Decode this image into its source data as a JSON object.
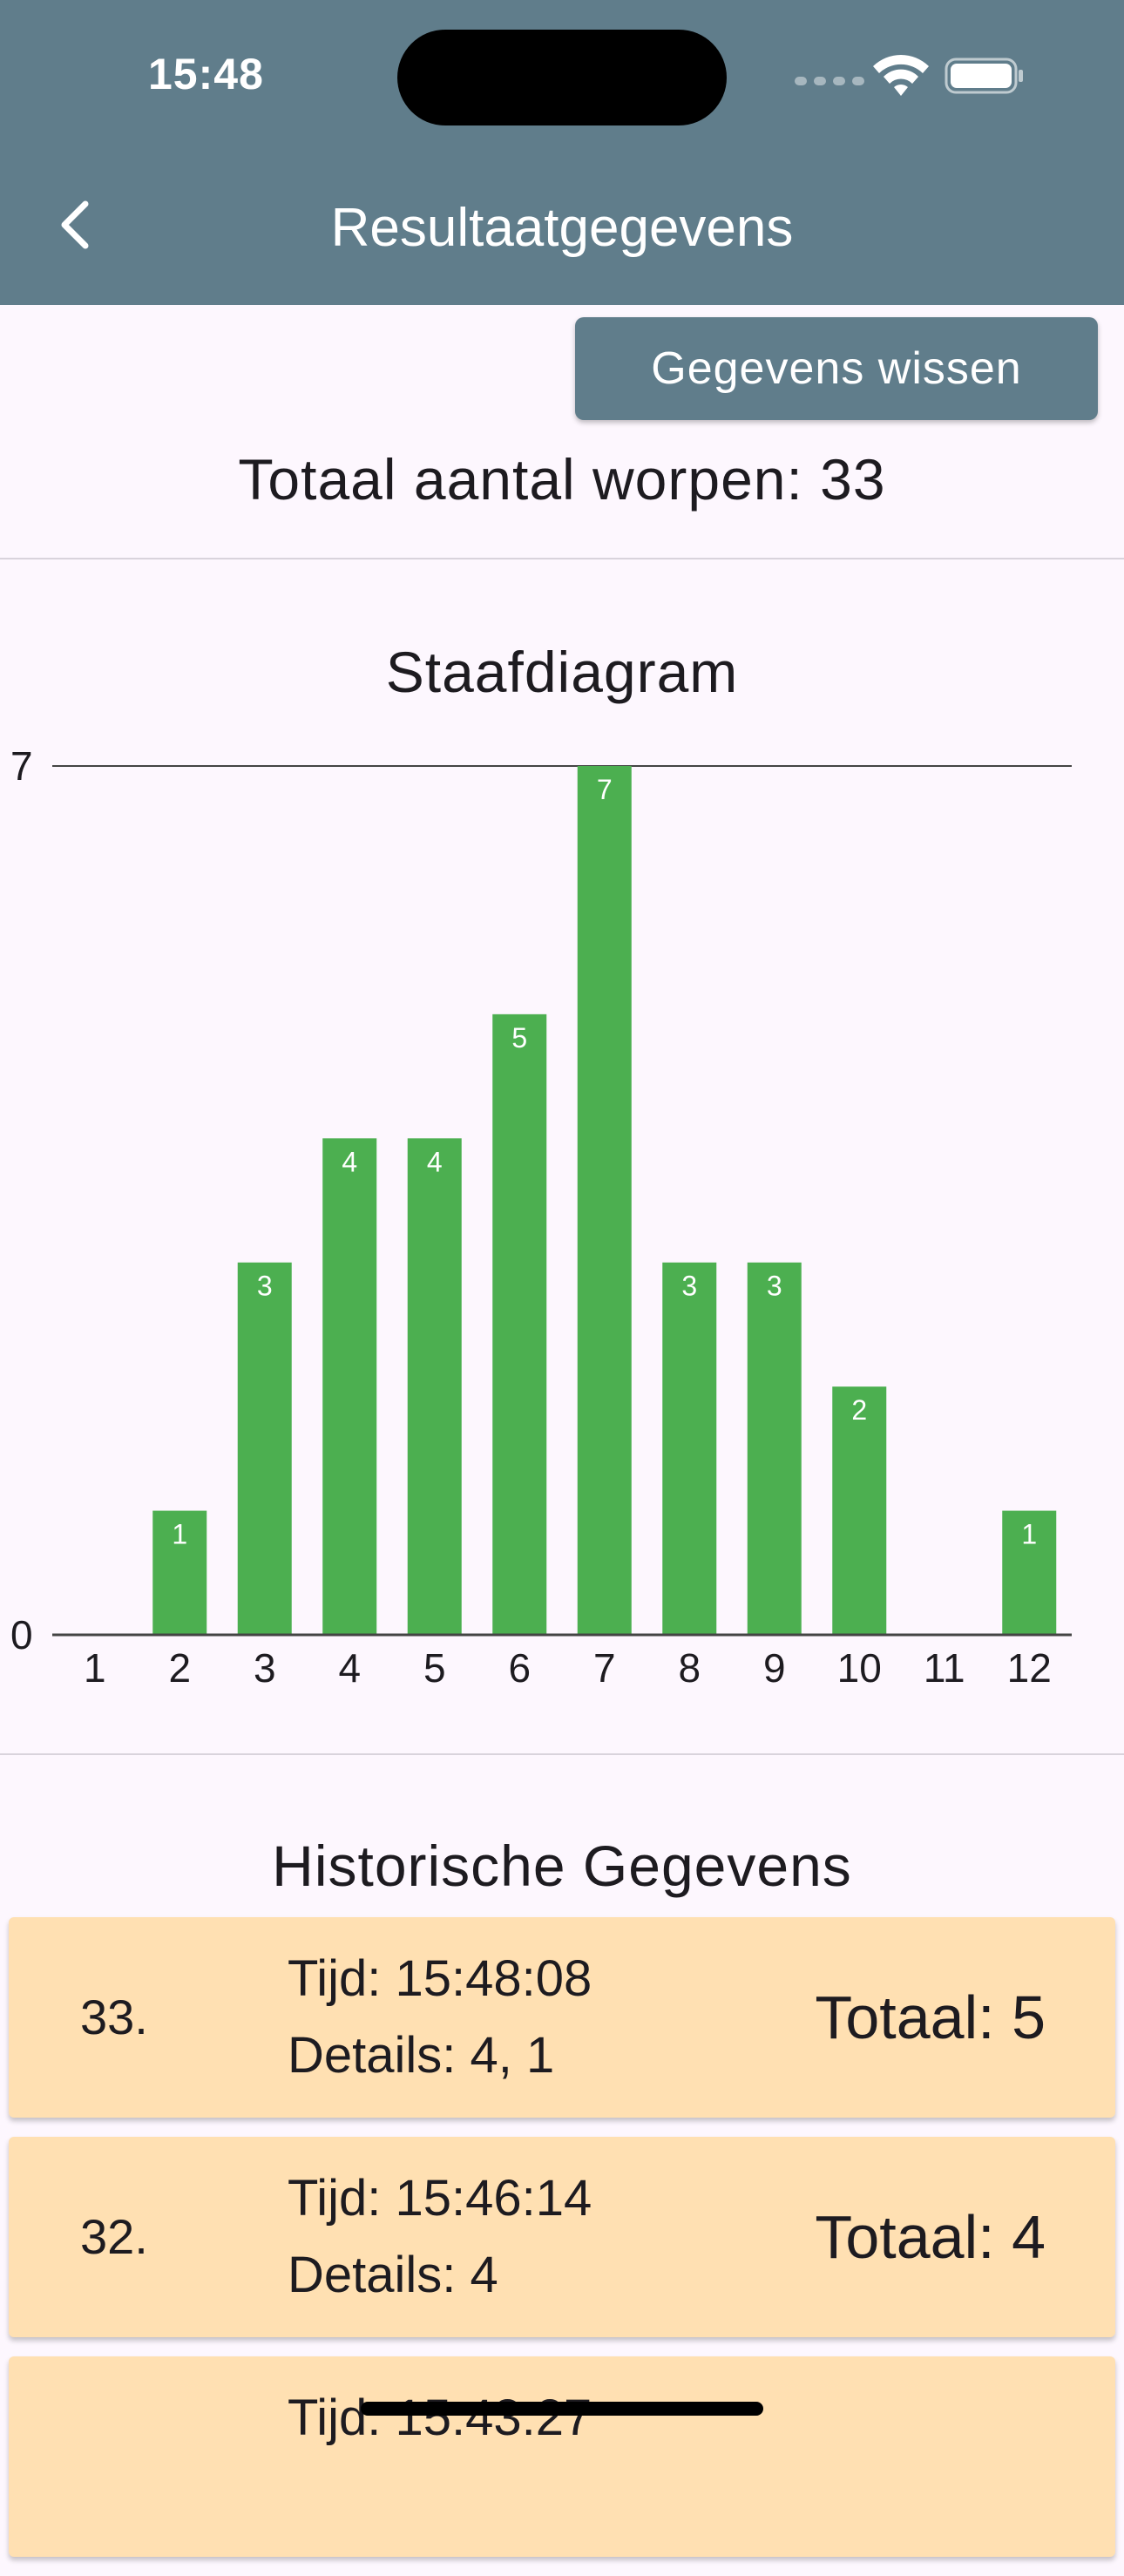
{
  "status_bar": {
    "time": "15:48"
  },
  "appbar": {
    "title": "Resultaatgegevens",
    "back_icon": "chevron-left-icon"
  },
  "clear_button": {
    "label": "Gegevens wissen"
  },
  "total": {
    "text": "Totaal aantal worpen: 33"
  },
  "chart_data": {
    "type": "bar",
    "title": "Staafdiagram",
    "categories": [
      "1",
      "2",
      "3",
      "4",
      "5",
      "6",
      "7",
      "8",
      "9",
      "10",
      "11",
      "12"
    ],
    "values": [
      0,
      1,
      3,
      4,
      4,
      5,
      7,
      3,
      3,
      2,
      0,
      1
    ],
    "ylim": [
      0,
      7
    ],
    "y_ticks": [
      "0",
      "7"
    ],
    "xlabel": "",
    "ylabel": "",
    "bar_color": "#4caf50",
    "grid": false
  },
  "history": {
    "title": "Historische Gegevens",
    "items": [
      {
        "num": "33.",
        "time": "Tijd: 15:48:08",
        "details": "Details: 4, 1",
        "total": "Totaal: 5"
      },
      {
        "num": "32.",
        "time": "Tijd: 15:46:14",
        "details": "Details: 4",
        "total": "Totaal: 4"
      },
      {
        "num": "",
        "time": "Tijd: 15:43:27",
        "details": "",
        "total": ""
      }
    ]
  },
  "colors": {
    "appbar": "#607d8b",
    "card": "#ffe0b2",
    "background": "#fdf7fe"
  }
}
